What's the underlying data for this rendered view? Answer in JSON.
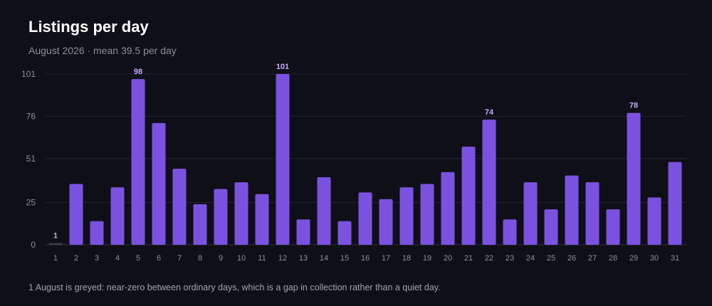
{
  "header": {
    "title": "Listings per day",
    "subtitle": "August 2026 · mean 39.5 per day"
  },
  "footnote": "1 August is greyed: near-zero between ordinary days, which is a gap in collection rather than a quiet day.",
  "colors": {
    "bar": "#7b52e0",
    "bar_muted": "#3d3d4a",
    "label": "#c4a8ff",
    "grid": "#262634",
    "axis_text": "#8e8e9e",
    "background": "#0f0f17"
  },
  "chart_data": {
    "type": "bar",
    "categories": [
      "1",
      "2",
      "3",
      "4",
      "5",
      "6",
      "7",
      "8",
      "9",
      "10",
      "11",
      "12",
      "13",
      "14",
      "15",
      "16",
      "17",
      "18",
      "19",
      "20",
      "21",
      "22",
      "23",
      "24",
      "25",
      "26",
      "27",
      "28",
      "29",
      "30",
      "31"
    ],
    "values": [
      1,
      36,
      14,
      34,
      98,
      72,
      45,
      24,
      33,
      37,
      30,
      101,
      15,
      40,
      14,
      31,
      27,
      34,
      36,
      43,
      58,
      74,
      15,
      37,
      21,
      41,
      37,
      21,
      78,
      28,
      49
    ],
    "highlight_labels": [
      {
        "category": "1",
        "label": "1"
      },
      {
        "category": "5",
        "label": "98"
      },
      {
        "category": "12",
        "label": "101"
      },
      {
        "category": "22",
        "label": "74"
      },
      {
        "category": "29",
        "label": "78"
      }
    ],
    "muted_categories": [
      "1"
    ],
    "yticks": [
      0,
      25,
      51,
      76,
      101
    ],
    "ylim": [
      0,
      101
    ],
    "grid": true,
    "title": "Listings per day",
    "xlabel": "",
    "ylabel": ""
  }
}
